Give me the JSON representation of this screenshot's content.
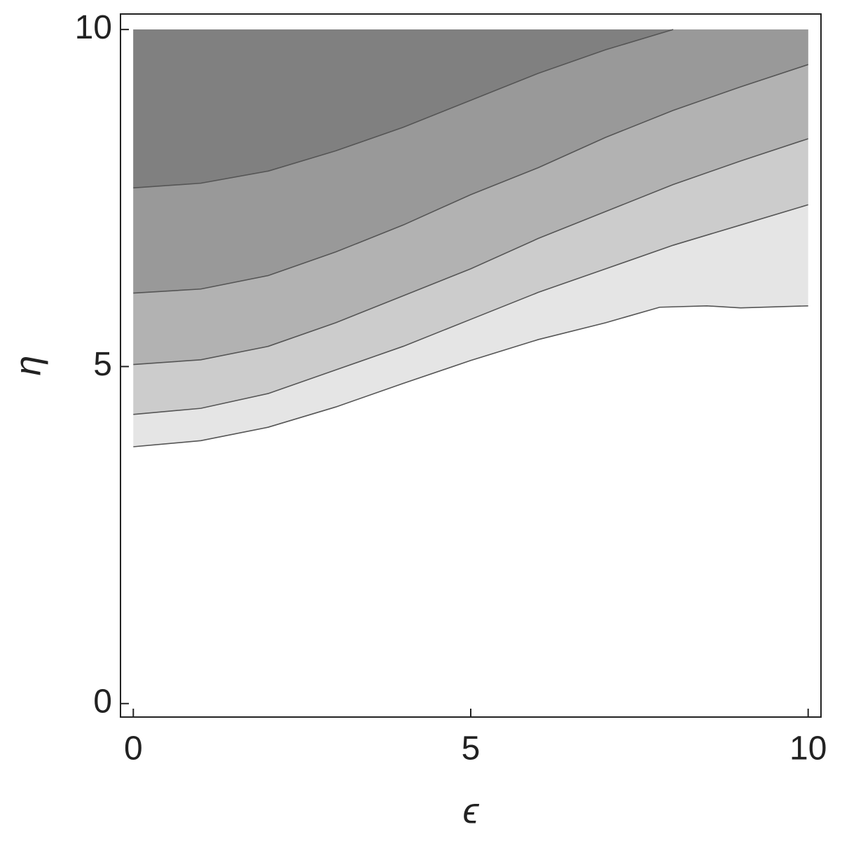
{
  "chart_data": {
    "type": "contour",
    "x_label": "ϵ",
    "y_label": "η",
    "xlim": [
      -0.19,
      10.19
    ],
    "ylim": [
      -0.2,
      10.23
    ],
    "xticks": [
      0,
      5,
      10
    ],
    "yticks": [
      0,
      5,
      10
    ],
    "line_color": "#555555",
    "series": [
      {
        "fill": "#e5e5e5",
        "x": [
          0,
          1,
          2,
          3,
          4,
          5,
          6,
          7,
          7.8,
          8.5,
          9,
          10
        ],
        "values": [
          3.81,
          3.9,
          4.1,
          4.4,
          4.75,
          5.09,
          5.4,
          5.65,
          5.88,
          5.9,
          5.87,
          5.9
        ]
      },
      {
        "fill": "#cccccc",
        "x": [
          0,
          1,
          2,
          3,
          4,
          5,
          6,
          7,
          8,
          9,
          10
        ],
        "values": [
          4.29,
          4.38,
          4.6,
          4.95,
          5.3,
          5.7,
          6.1,
          6.45,
          6.8,
          7.1,
          7.4
        ]
      },
      {
        "fill": "#b2b2b2",
        "x": [
          0,
          1,
          2,
          3,
          4,
          5,
          6,
          7,
          8,
          9,
          10
        ],
        "values": [
          5.03,
          5.1,
          5.3,
          5.65,
          6.05,
          6.45,
          6.9,
          7.3,
          7.7,
          8.05,
          8.38
        ]
      },
      {
        "fill": "#999999",
        "x": [
          0,
          1,
          2,
          3,
          4,
          5,
          6,
          7,
          8,
          9,
          10
        ],
        "values": [
          6.09,
          6.15,
          6.35,
          6.7,
          7.1,
          7.55,
          7.95,
          8.4,
          8.8,
          9.15,
          9.48
        ]
      },
      {
        "fill": "#808080",
        "x": [
          0,
          1,
          2,
          3,
          4,
          5,
          6,
          7,
          8
        ],
        "values": [
          7.65,
          7.72,
          7.9,
          8.2,
          8.55,
          8.95,
          9.35,
          9.7,
          10
        ]
      }
    ]
  }
}
